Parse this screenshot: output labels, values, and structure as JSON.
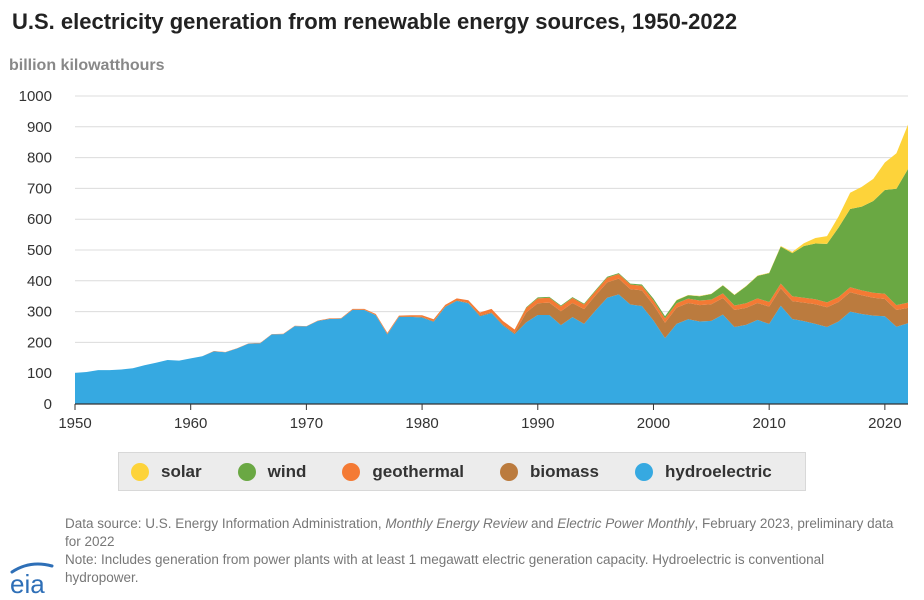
{
  "header": {
    "title": "U.S. electricity generation from renewable energy sources, 1950-2022",
    "units": "billion kilowatthours"
  },
  "colors": {
    "hydroelectric": "#36a9e1",
    "biomass": "#bb7b3e",
    "geothermal": "#f47a34",
    "wind": "#6aa843",
    "solar": "#fdd33a"
  },
  "legend": [
    {
      "key": "solar",
      "label": "solar"
    },
    {
      "key": "wind",
      "label": "wind"
    },
    {
      "key": "geothermal",
      "label": "geothermal"
    },
    {
      "key": "biomass",
      "label": "biomass"
    },
    {
      "key": "hydroelectric",
      "label": "hydroelectric"
    }
  ],
  "footer": {
    "source_prefix": "Data source: U.S. Energy Information Administration, ",
    "source_title_1": "Monthly Energy Review",
    "source_and": " and ",
    "source_title_2": "Electric Power Monthly",
    "source_suffix": ", February 2023, preliminary data for 2022",
    "note": "Note: Includes generation from power plants with at least 1 megawatt electric generation capacity. Hydroelectric is conventional hydropower.",
    "logo_text": "eia"
  },
  "chart_data": {
    "type": "area",
    "stacked": true,
    "title": "U.S. electricity generation from renewable energy sources, 1950-2022",
    "xlabel": "",
    "ylabel": "billion kilowatthours",
    "xlim": [
      1950,
      2022
    ],
    "ylim": [
      0,
      1000
    ],
    "xticks": [
      1950,
      1960,
      1970,
      1980,
      1990,
      2000,
      2010,
      2020
    ],
    "yticks": [
      0,
      100,
      200,
      300,
      400,
      500,
      600,
      700,
      800,
      900,
      1000
    ],
    "grid": true,
    "legend_position": "bottom",
    "x": [
      1950,
      1951,
      1952,
      1953,
      1954,
      1955,
      1956,
      1957,
      1958,
      1959,
      1960,
      1961,
      1962,
      1963,
      1964,
      1965,
      1966,
      1967,
      1968,
      1969,
      1970,
      1971,
      1972,
      1973,
      1974,
      1975,
      1976,
      1977,
      1978,
      1979,
      1980,
      1981,
      1982,
      1983,
      1984,
      1985,
      1986,
      1987,
      1988,
      1989,
      1990,
      1991,
      1992,
      1993,
      1994,
      1995,
      1996,
      1997,
      1998,
      1999,
      2000,
      2001,
      2002,
      2003,
      2004,
      2005,
      2006,
      2007,
      2008,
      2009,
      2010,
      2011,
      2012,
      2013,
      2014,
      2015,
      2016,
      2017,
      2018,
      2019,
      2020,
      2021,
      2022
    ],
    "series": [
      {
        "name": "hydroelectric",
        "values": [
          101,
          104,
          110,
          110,
          112,
          116,
          126,
          134,
          143,
          141,
          148,
          155,
          171,
          168,
          180,
          196,
          197,
          226,
          227,
          253,
          252,
          270,
          276,
          277,
          306,
          305,
          288,
          226,
          283,
          283,
          281,
          267,
          315,
          335,
          327,
          285,
          295,
          255,
          227,
          265,
          289,
          289,
          256,
          282,
          260,
          304,
          345,
          356,
          323,
          318,
          271,
          214,
          260,
          275,
          268,
          270,
          290,
          250,
          257,
          273,
          260,
          319,
          276,
          269,
          260,
          250,
          268,
          300,
          292,
          287,
          285,
          251,
          262
        ]
      },
      {
        "name": "biomass",
        "values": [
          0,
          0,
          0,
          0,
          0,
          0,
          0,
          0,
          0,
          0,
          0,
          0,
          0,
          0,
          0,
          0,
          0,
          0,
          0,
          0,
          0,
          0,
          0,
          0,
          0,
          1,
          1,
          1,
          1,
          1,
          2,
          2,
          2,
          2,
          2,
          3,
          3,
          3,
          4,
          32,
          38,
          40,
          45,
          46,
          48,
          49,
          50,
          51,
          50,
          51,
          51,
          50,
          53,
          53,
          53,
          54,
          54,
          55,
          55,
          55,
          56,
          57,
          58,
          60,
          64,
          64,
          63,
          63,
          61,
          58,
          56,
          54,
          50
        ]
      },
      {
        "name": "geothermal",
        "values": [
          0,
          0,
          0,
          0,
          0,
          0,
          0,
          0,
          0,
          0,
          0,
          0,
          1,
          1,
          1,
          1,
          1,
          1,
          1,
          1,
          1,
          1,
          2,
          2,
          3,
          3,
          3,
          4,
          3,
          4,
          5,
          6,
          5,
          6,
          8,
          9,
          11,
          11,
          11,
          15,
          16,
          16,
          16,
          16,
          15,
          14,
          15,
          15,
          15,
          15,
          14,
          14,
          14,
          14,
          15,
          15,
          15,
          15,
          15,
          15,
          15,
          15,
          16,
          16,
          16,
          16,
          16,
          16,
          16,
          16,
          17,
          16,
          17
        ]
      },
      {
        "name": "wind",
        "values": [
          0,
          0,
          0,
          0,
          0,
          0,
          0,
          0,
          0,
          0,
          0,
          0,
          0,
          0,
          0,
          0,
          0,
          0,
          0,
          0,
          0,
          0,
          0,
          0,
          0,
          0,
          0,
          0,
          0,
          0,
          0,
          0,
          0,
          0,
          0,
          0,
          0,
          0,
          0,
          2,
          3,
          3,
          3,
          3,
          3,
          3,
          3,
          3,
          3,
          4,
          6,
          7,
          10,
          11,
          14,
          18,
          26,
          34,
          55,
          73,
          94,
          120,
          140,
          168,
          181,
          190,
          226,
          254,
          272,
          298,
          337,
          378,
          434
        ]
      },
      {
        "name": "solar",
        "values": [
          0,
          0,
          0,
          0,
          0,
          0,
          0,
          0,
          0,
          0,
          0,
          0,
          0,
          0,
          0,
          0,
          0,
          0,
          0,
          0,
          0,
          0,
          0,
          0,
          0,
          0,
          0,
          0,
          0,
          0,
          0,
          0,
          0,
          0,
          0,
          0,
          0,
          0,
          0,
          0,
          0,
          0,
          0,
          0,
          0,
          0,
          0,
          0,
          0,
          0,
          0,
          0,
          1,
          1,
          1,
          1,
          1,
          1,
          1,
          1,
          1,
          2,
          4,
          9,
          18,
          25,
          36,
          53,
          64,
          72,
          89,
          115,
          144
        ]
      }
    ]
  }
}
